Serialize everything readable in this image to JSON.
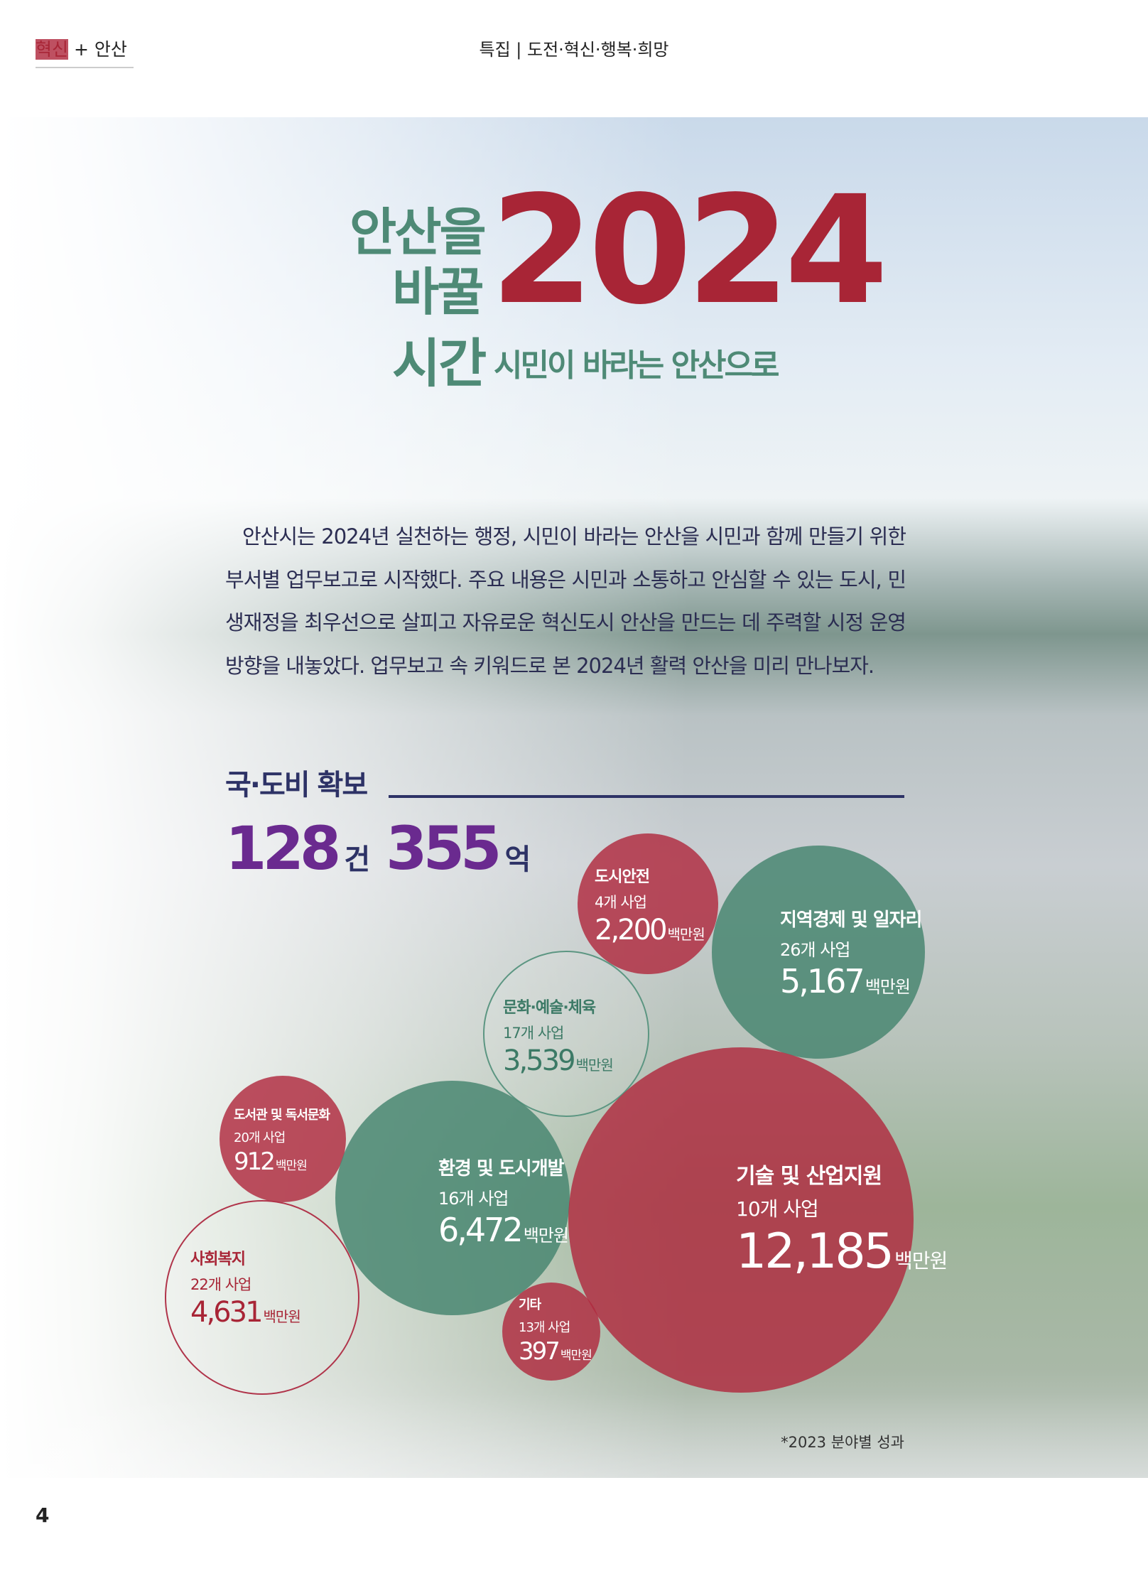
{
  "header": {
    "left_a": "혁신",
    "left_plus": "+",
    "left_b": "안산",
    "center": "특집 | 도전·혁신·행복·희망"
  },
  "title": {
    "line1": "안산을",
    "line2": "바꿀",
    "line3": "시간",
    "year": "2024",
    "subtitle": "시민이 바라는 안산으로"
  },
  "body": "안산시는 2024년 실천하는 행정, 시민이 바라는 안산을 시민과 함께 만들기 위한 부서별 업무보고로 시작했다. 주요 내용은 시민과 소통하고 안심할 수 있는 도시, 민생재정을 최우선으로 살피고 자유로운 혁신도시 안산을 만드는 데 주력할 시정 운영 방향을 내놓았다. 업무보고 속 키워드로 본 2024년 활력 안산을 미리 만나보자.",
  "section": {
    "title": "국·도비 확보",
    "count": "128",
    "count_unit": "건",
    "amount": "355",
    "amount_unit": "억"
  },
  "colors": {
    "red": "#a82536",
    "green": "#4e8a76",
    "navy": "#2d3266",
    "purple": "#6a2a8f"
  },
  "bubbles": [
    {
      "label": "도시안전",
      "count": "4개 사업",
      "value": "2,200",
      "unit": "백만원"
    },
    {
      "label": "지역경제 및 일자리",
      "count": "26개 사업",
      "value": "5,167",
      "unit": "백만원"
    },
    {
      "label": "문화·예술·체육",
      "count": "17개 사업",
      "value": "3,539",
      "unit": "백만원"
    },
    {
      "label": "도서관 및 독서문화",
      "count": "20개 사업",
      "value": "912",
      "unit": "백만원"
    },
    {
      "label": "환경 및 도시개발",
      "count": "16개 사업",
      "value": "6,472",
      "unit": "백만원"
    },
    {
      "label": "기술 및 산업지원",
      "count": "10개 사업",
      "value": "12,185",
      "unit": "백만원"
    },
    {
      "label": "사회복지",
      "count": "22개 사업",
      "value": "4,631",
      "unit": "백만원"
    },
    {
      "label": "기타",
      "count": "13개 사업",
      "value": "397",
      "unit": "백만원"
    }
  ],
  "note": "*2023 분야별 성과",
  "page_number": "4"
}
